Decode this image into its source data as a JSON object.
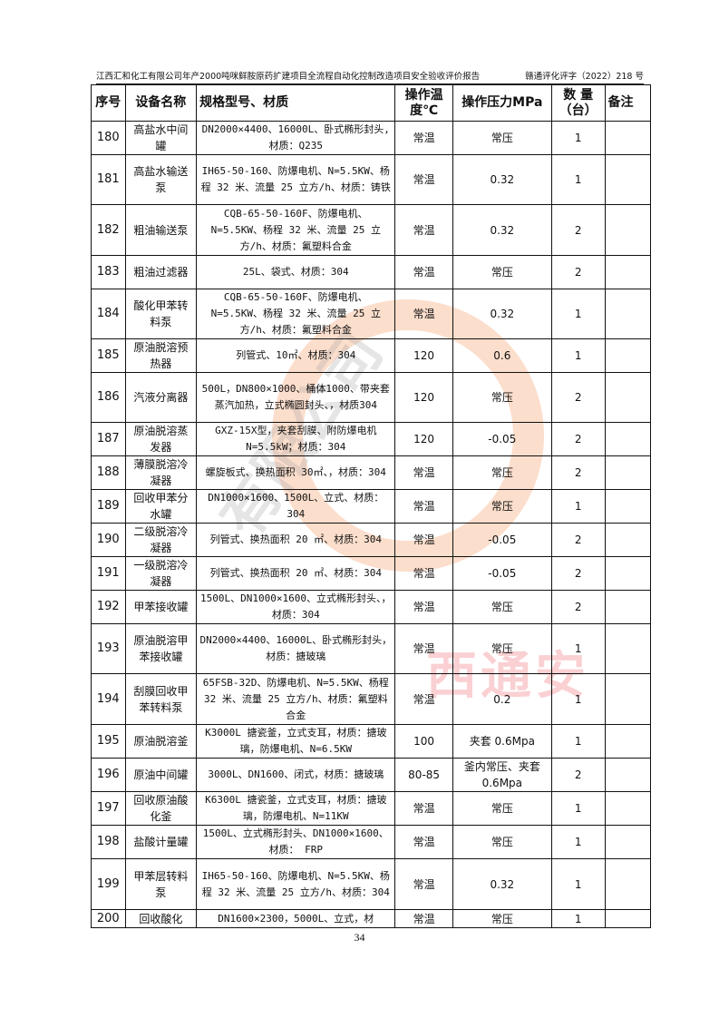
{
  "header": {
    "title": "江西汇和化工有限公司年产2000吨咪鲜胺原药扩建项目全流程自动化控制改造项目安全验收评价报告",
    "doc_no": "赣通评化评字（2022）218 号"
  },
  "watermark": {
    "text": "江西通安",
    "company": "有限公司"
  },
  "table": {
    "columns": [
      "序号",
      "设备名称",
      "规格型号、材质",
      "操作温度℃",
      "操作压力MPa",
      "数 量（台）",
      "备注"
    ],
    "rows": [
      {
        "no": "180",
        "name": "高盐水中间罐",
        "spec": "DN2000×4400、16000L、卧式椭形封头,材质：Q235",
        "temp": "常温",
        "pressure": "常压",
        "qty": "1",
        "note": ""
      },
      {
        "no": "181",
        "name": "高盐水输送泵",
        "spec": "IH65-50-160、防爆电机、N=5.5KW、杨程 32 米、流量 25 立方/h、材质：铸铁",
        "temp": "常温",
        "pressure": "0.32",
        "qty": "1",
        "note": ""
      },
      {
        "no": "182",
        "name": "粗油输送泵",
        "spec": "CQB-65-50-160F、防爆电机、N=5.5KW、杨程 32 米、流量 25 立方/h、材质：氟塑料合金",
        "temp": "常温",
        "pressure": "0.32",
        "qty": "2",
        "note": ""
      },
      {
        "no": "183",
        "name": "粗油过滤器",
        "spec": "25L、袋式、材质：304",
        "temp": "常温",
        "pressure": "常压",
        "qty": "2",
        "note": ""
      },
      {
        "no": "184",
        "name": "酸化甲苯转料泵",
        "spec": "CQB-65-50-160F、防爆电机、N=5.5KW、杨程 32 米、流量 25 立方/h、材质：氟塑料合金",
        "temp": "常温",
        "pressure": "0.32",
        "qty": "1",
        "note": ""
      },
      {
        "no": "185",
        "name": "原油脱溶预热器",
        "spec": "列管式、10㎡、材质：304",
        "temp": "120",
        "pressure": "0.6",
        "qty": "1",
        "note": ""
      },
      {
        "no": "186",
        "name": "汽液分离器",
        "spec": "500L，DN800×1000、桶体1000、带夹套蒸汽加热，立式椭圆封头、，材质304",
        "temp": "120",
        "pressure": "常压",
        "qty": "2",
        "note": ""
      },
      {
        "no": "187",
        "name": "原油脱溶蒸发器",
        "spec": "GXZ-15X型，夹套刮膜、附防爆电机 N=5.5kW；材质：304",
        "temp": "120",
        "pressure": "-0.05",
        "qty": "2",
        "note": ""
      },
      {
        "no": "188",
        "name": "薄膜脱溶冷凝器",
        "spec": "螺旋板式、换热面积 30㎡、，材质：304",
        "temp": "常温",
        "pressure": "常压",
        "qty": "2",
        "note": ""
      },
      {
        "no": "189",
        "name": "回收甲苯分水罐",
        "spec": "DN1000×1600、1500L、立式、材质：304",
        "temp": "常温",
        "pressure": "常压",
        "qty": "1",
        "note": ""
      },
      {
        "no": "190",
        "name": "二级脱溶冷凝器",
        "spec": "列管式、换热面积 20 ㎡、材质：304",
        "temp": "常温",
        "pressure": "-0.05",
        "qty": "2",
        "note": ""
      },
      {
        "no": "191",
        "name": "一级脱溶冷凝器",
        "spec": "列管式、换热面积 20 ㎡、材质：304",
        "temp": "常温",
        "pressure": "-0.05",
        "qty": "2",
        "note": ""
      },
      {
        "no": "192",
        "name": "甲苯接收罐",
        "spec": "1500L、DN1000×1600、立式椭形封头、，材质：304",
        "temp": "常温",
        "pressure": "常压",
        "qty": "2",
        "note": ""
      },
      {
        "no": "193",
        "name": "原油脱溶甲苯接收罐",
        "spec": "DN2000×4400、16000L、卧式椭形封头，材质：搪玻璃",
        "temp": "常温",
        "pressure": "常压",
        "qty": "1",
        "note": ""
      },
      {
        "no": "194",
        "name": "刮膜回收甲苯转料泵",
        "spec": "65FSB-32D、防爆电机、N=5.5KW、杨程 32 米、流量 25 立方/h、材质：氟塑料合金",
        "temp": "常温",
        "pressure": "0.2",
        "qty": "1",
        "note": ""
      },
      {
        "no": "195",
        "name": "原油脱溶釜",
        "spec": "K3000L 搪瓷釜，立式支耳，材质：搪玻璃，防爆电机、N=6.5KW",
        "temp": "100",
        "pressure": "夹套 0.6Mpa",
        "qty": "1",
        "note": ""
      },
      {
        "no": "196",
        "name": "原油中间罐",
        "spec": "3000L、DN1600、闭式，材质：搪玻璃",
        "temp": "80-85",
        "pressure": "釜内常压、夹套 0.6Mpa",
        "qty": "2",
        "note": ""
      },
      {
        "no": "197",
        "name": "回收原油酸化釜",
        "spec": "K6300L 搪瓷釜，立式支耳，材质：搪玻璃，防爆电机、N=11KW",
        "temp": "常温",
        "pressure": "常压",
        "qty": "1",
        "note": ""
      },
      {
        "no": "198",
        "name": "盐酸计量罐",
        "spec": "1500L、立式椭形封头、DN1000×1600、材质： FRP",
        "temp": "常温",
        "pressure": "常压",
        "qty": "1",
        "note": ""
      },
      {
        "no": "199",
        "name": "甲苯层转料泵",
        "spec": "IH65-50-160、防爆电机、N=5.5KW、杨程 32 米、流量 25 立方/h、材质：304",
        "temp": "常温",
        "pressure": "0.32",
        "qty": "1",
        "note": ""
      },
      {
        "no": "200",
        "name": "回收酸化",
        "spec": "DN1600×2300，5000L、立式，材",
        "temp": "常温",
        "pressure": "常压",
        "qty": "1",
        "note": ""
      }
    ]
  },
  "footer": {
    "page": "34"
  }
}
